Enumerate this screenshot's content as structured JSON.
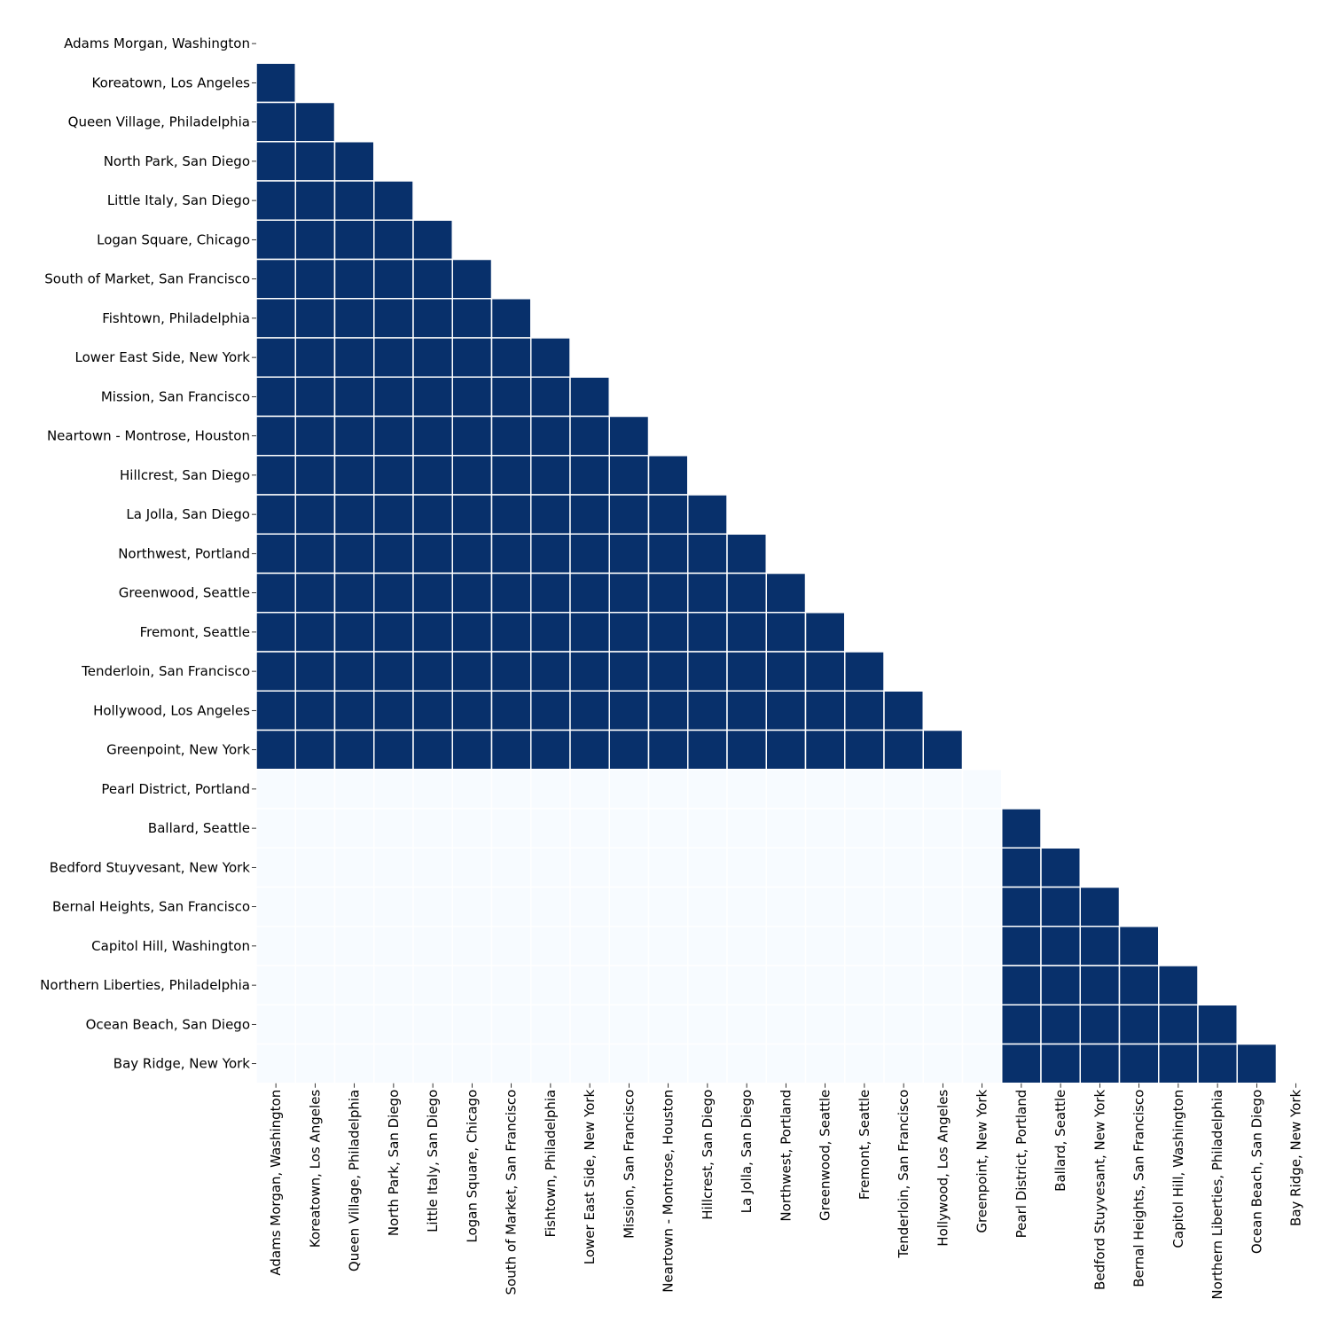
{
  "chart_data": {
    "type": "heatmap",
    "style": "lower-triangle (diagonal and above masked)",
    "colors": {
      "high": "#08306b",
      "low": "#f7fbff",
      "grid": "#ffffff"
    },
    "labels": [
      "Adams Morgan, Washington",
      "Koreatown, Los Angeles",
      "Queen Village, Philadelphia",
      "North Park, San Diego",
      "Little Italy, San Diego",
      "Logan Square, Chicago",
      "South of Market, San Francisco",
      "Fishtown, Philadelphia",
      "Lower East Side, New York",
      "Mission, San Francisco",
      "Neartown - Montrose, Houston",
      "Hillcrest, San Diego",
      "La Jolla, San Diego",
      "Northwest, Portland",
      "Greenwood, Seattle",
      "Fremont, Seattle",
      "Tenderloin, San Francisco",
      "Hollywood, Los Angeles",
      "Greenpoint, New York",
      "Pearl District, Portland",
      "Ballard, Seattle",
      "Bedford Stuyvesant, New York",
      "Bernal Heights, San Francisco",
      "Capitol Hill, Washington",
      "Northern Liberties, Philadelphia",
      "Ocean Beach, San Diego",
      "Bay Ridge, New York"
    ],
    "clusters": [
      {
        "start": 0,
        "end": 18
      },
      {
        "start": 19,
        "end": 26
      }
    ],
    "value_rule": "cell (i, j) with j < i is 1 when i and j are in the same cluster, otherwise 0"
  }
}
